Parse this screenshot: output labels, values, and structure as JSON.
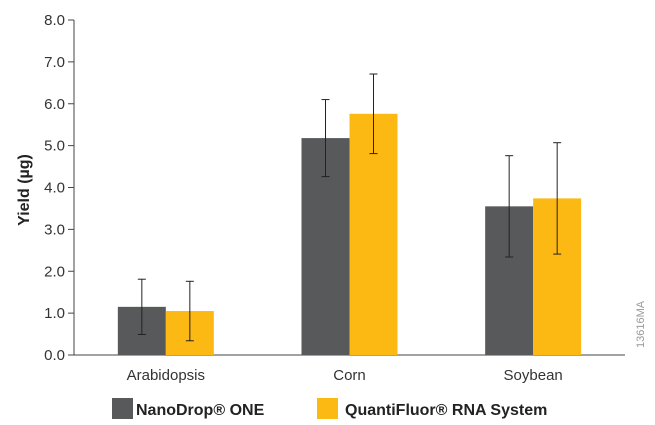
{
  "figure_id": "13616MA",
  "colors": {
    "nanodrop": "#58595b",
    "quantifluor": "#fdb913",
    "axis": "#444444",
    "error": "#222222"
  },
  "chart_data": {
    "type": "bar",
    "title": "",
    "xlabel": "",
    "ylabel": "Yield (µg)",
    "ylim": [
      0,
      8
    ],
    "yticks": [
      "0.0",
      "1.0",
      "2.0",
      "3.0",
      "4.0",
      "5.0",
      "6.0",
      "7.0",
      "8.0"
    ],
    "grid": false,
    "legend_position": "bottom",
    "categories": [
      "Arabidopsis",
      "Corn",
      "Soybean"
    ],
    "series": [
      {
        "name": "NanoDrop® ONE",
        "color": "#58595b",
        "values": [
          1.15,
          5.18,
          3.55
        ],
        "errors": [
          0.66,
          0.92,
          1.21
        ]
      },
      {
        "name": "QuantiFluor® RNA System",
        "color": "#fdb913",
        "values": [
          1.05,
          5.76,
          3.74
        ],
        "errors": [
          0.71,
          0.95,
          1.33
        ]
      }
    ]
  }
}
